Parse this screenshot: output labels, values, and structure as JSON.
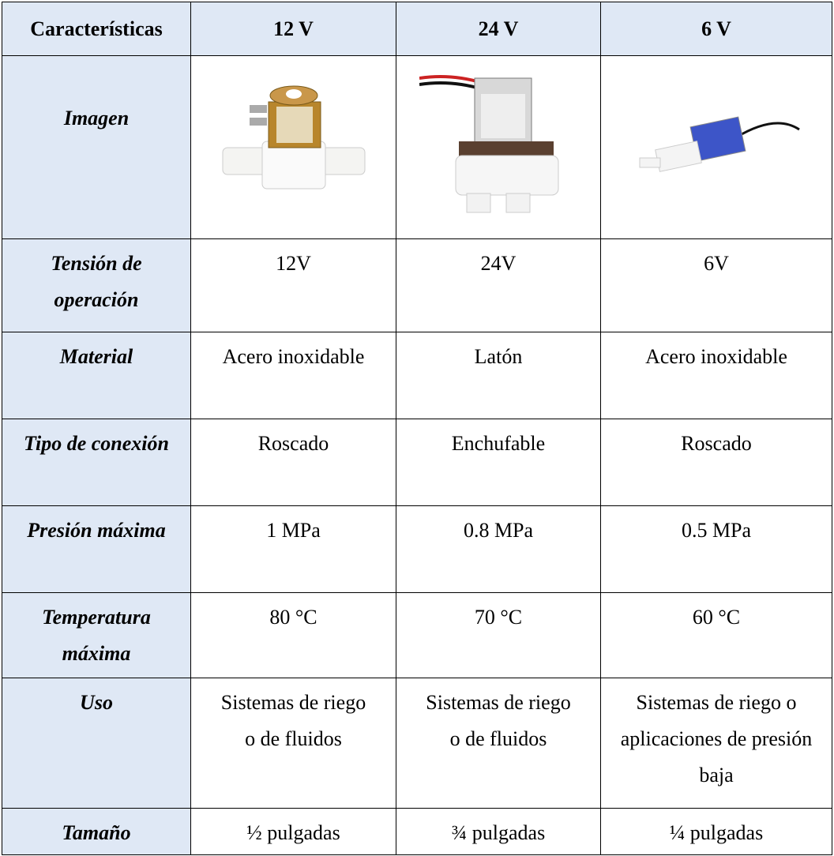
{
  "table": {
    "header": [
      "Características",
      "12 V",
      "24 V",
      "6 V"
    ],
    "rows": [
      [
        "Imagen"
      ],
      [
        "Tensión de operación",
        "12V",
        "24V",
        "6V"
      ],
      [
        "Material",
        "Acero inoxidable",
        "Latón",
        "Acero inoxidable"
      ],
      [
        "Tipo de conexión",
        "Roscado",
        "Enchufable",
        "Roscado"
      ],
      [
        "Presión máxima",
        "1 MPa",
        "0.8 MPa",
        "0.5 MPa"
      ],
      [
        "Temperatura máxima",
        "80 °C",
        "70 °C",
        "60 °C"
      ],
      [
        "Uso",
        "Sistemas de riego o de fluidos",
        "Sistemas de riego o de fluidos",
        "Sistemas de riego o aplicaciones de presión baja"
      ],
      [
        "Tamaño",
        "½ pulgadas",
        "¾ pulgadas",
        "¼ pulgadas"
      ]
    ]
  }
}
